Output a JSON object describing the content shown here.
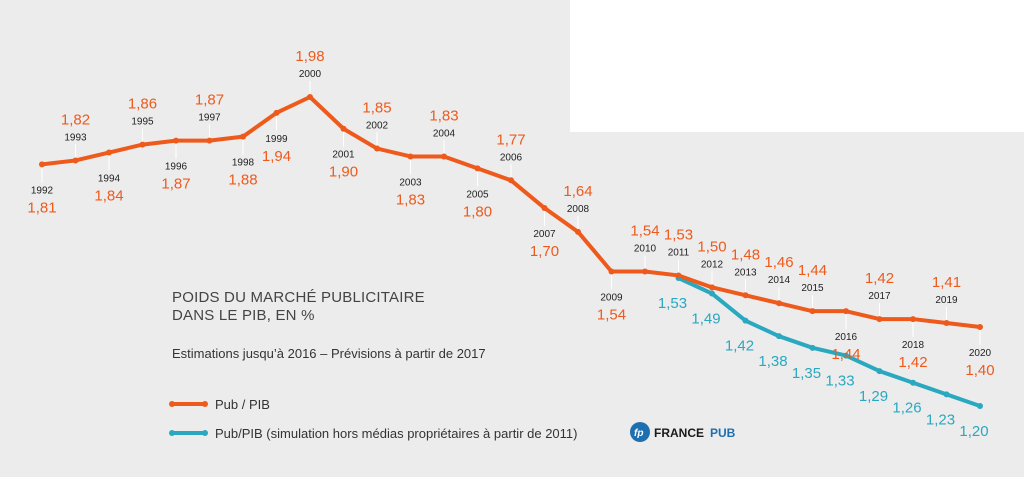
{
  "colors": {
    "background": "#ececec",
    "pub": "#ee5a1c",
    "sim": "#2aa8bf",
    "brand": "#1e6fb0"
  },
  "chart_data": {
    "type": "line",
    "title_lines": [
      "POIDS DU MARCHÉ PUBLICITAIRE",
      "DANS LE PIB, EN %"
    ],
    "subtitle": "Estimations jusqu’à 2016 – Prévisions à partir de 2017",
    "x": [
      "1992",
      "1993",
      "1994",
      "1995",
      "1996",
      "1997",
      "1998",
      "1999",
      "2000",
      "2001",
      "2002",
      "2003",
      "2004",
      "2005",
      "2006",
      "2007",
      "2008",
      "2009",
      "2010",
      "2011",
      "2012",
      "2013",
      "2014",
      "2015",
      "2016",
      "2017",
      "2018",
      "2019",
      "2020"
    ],
    "series": [
      {
        "name": "Pub / PIB",
        "color": "#ee5a1c",
        "values": [
          1.81,
          1.82,
          1.84,
          1.86,
          1.87,
          1.87,
          1.88,
          1.94,
          1.98,
          1.9,
          1.85,
          1.83,
          1.83,
          1.8,
          1.77,
          1.7,
          1.64,
          1.54,
          1.54,
          1.53,
          1.5,
          1.48,
          1.46,
          1.44,
          1.44,
          1.42,
          1.42,
          1.41,
          1.4
        ],
        "labels": [
          "1,81",
          "1,82",
          "1,84",
          "1,86",
          "1,87",
          "1,87",
          "1,88",
          "1,94",
          "1,98",
          "1,90",
          "1,85",
          "1,83",
          "1,83",
          "1,80",
          "1,77",
          "1,70",
          "1,64",
          "1,54",
          "1,54",
          "1,53",
          "1,50",
          "1,48",
          "1,46",
          "1,44",
          "1,44",
          "1,42",
          "1,42",
          "1,41",
          "1,40"
        ]
      },
      {
        "name": "Pub/PIB (simulation hors médias propriétaires à partir de 2011)",
        "color": "#2aa8bf",
        "x": [
          "2011",
          "2012",
          "2013",
          "2014",
          "2015",
          "2016",
          "2017",
          "2018",
          "2019",
          "2020"
        ],
        "values": [
          1.53,
          1.49,
          1.42,
          1.38,
          1.35,
          1.33,
          1.29,
          1.26,
          1.23,
          1.2
        ],
        "labels": [
          "1,53",
          "1,49",
          "1,42",
          "1,38",
          "1,35",
          "1,33",
          "1,29",
          "1,26",
          "1,23",
          "1,20"
        ]
      }
    ],
    "legend": [
      "Pub / PIB",
      "Pub/PIB (simulation hors médias propriétaires à partir de 2011)"
    ],
    "brand": {
      "prefix": "FRANCE",
      "suffix": "PUB",
      "logo": "fp-logo-icon"
    }
  }
}
